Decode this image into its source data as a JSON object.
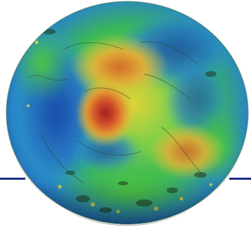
{
  "figure": {
    "subject": "terrain-relief-disk",
    "palette": {
      "background": "#ffffff",
      "rule": "#1c2f86",
      "low": "#0a3c9a",
      "mid_low": "#1fa0d8",
      "mid": "#3cc63a",
      "mid_high": "#e3d62b",
      "high": "#d4421c",
      "peak": "#b51010"
    }
  }
}
